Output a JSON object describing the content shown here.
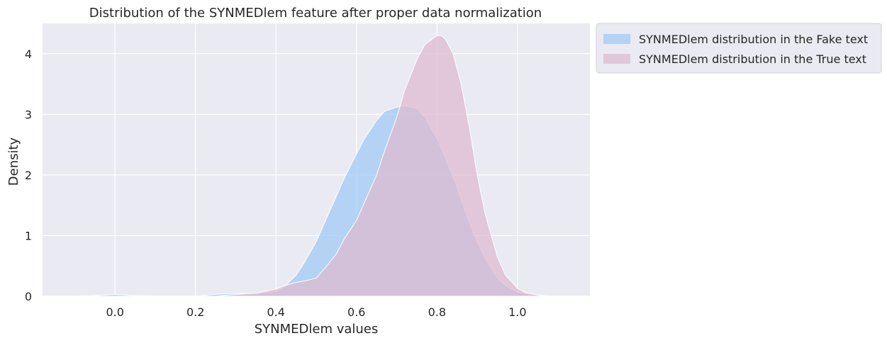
{
  "chart_data": {
    "type": "area",
    "title": "Distribution of the SYNMEDlem feature after proper data normalization",
    "xlabel": "SYNMEDlem values",
    "ylabel": "Density",
    "xlim": [
      -0.18,
      1.18
    ],
    "ylim": [
      0,
      4.5
    ],
    "xticks": [
      0.0,
      0.2,
      0.4,
      0.6,
      0.8,
      1.0
    ],
    "xtick_labels": [
      "0.0",
      "0.2",
      "0.4",
      "0.6",
      "0.8",
      "1.0"
    ],
    "yticks": [
      0,
      1,
      2,
      3,
      4
    ],
    "ytick_labels": [
      "0",
      "1",
      "2",
      "3",
      "4"
    ],
    "grid": true,
    "legend_position": "outside-top-right",
    "background_color": "#EAEAF2",
    "series": [
      {
        "name": "SYNMEDlem distribution in the Fake text",
        "color": "#A1C9F4",
        "x": [
          -0.1,
          -0.05,
          0.0,
          0.05,
          0.1,
          0.15,
          0.2,
          0.25,
          0.3,
          0.35,
          0.4,
          0.42,
          0.45,
          0.47,
          0.5,
          0.52,
          0.55,
          0.57,
          0.6,
          0.62,
          0.65,
          0.67,
          0.7,
          0.72,
          0.75,
          0.77,
          0.8,
          0.82,
          0.85,
          0.87,
          0.9,
          0.92,
          0.95,
          0.97,
          1.0,
          1.02,
          1.05,
          1.08,
          1.1
        ],
        "y": [
          0.0,
          0.01,
          0.03,
          0.01,
          0.0,
          0.0,
          0.0,
          0.03,
          0.05,
          0.04,
          0.08,
          0.15,
          0.35,
          0.55,
          0.9,
          1.2,
          1.65,
          1.95,
          2.35,
          2.6,
          2.9,
          3.05,
          3.12,
          3.14,
          3.1,
          2.95,
          2.6,
          2.3,
          1.8,
          1.4,
          0.9,
          0.62,
          0.3,
          0.18,
          0.07,
          0.04,
          0.01,
          0.0,
          0.0
        ]
      },
      {
        "name": "SYNMEDlem distribution in the True text",
        "color": "#DEBBD0",
        "x": [
          0.25,
          0.3,
          0.35,
          0.4,
          0.42,
          0.45,
          0.47,
          0.5,
          0.52,
          0.55,
          0.57,
          0.6,
          0.62,
          0.65,
          0.67,
          0.7,
          0.72,
          0.75,
          0.77,
          0.8,
          0.81,
          0.82,
          0.84,
          0.86,
          0.88,
          0.9,
          0.92,
          0.95,
          0.97,
          1.0,
          1.02,
          1.05,
          1.08,
          1.1
        ],
        "y": [
          0.0,
          0.03,
          0.05,
          0.12,
          0.17,
          0.23,
          0.25,
          0.3,
          0.45,
          0.7,
          0.95,
          1.25,
          1.55,
          2.0,
          2.4,
          2.95,
          3.4,
          3.9,
          4.15,
          4.3,
          4.3,
          4.25,
          4.0,
          3.5,
          2.8,
          2.0,
          1.35,
          0.65,
          0.35,
          0.13,
          0.06,
          0.02,
          0.0,
          0.0
        ]
      }
    ]
  }
}
